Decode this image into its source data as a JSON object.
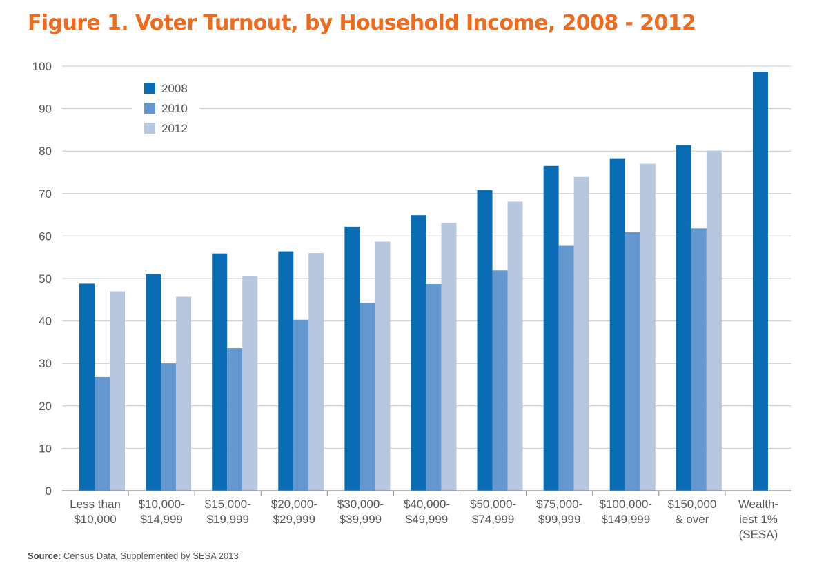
{
  "title": "Figure 1. Voter Turnout, by Household Income, 2008 - 2012",
  "source_label": "Source:",
  "source_text": "Census Data, Supplemented by SESA 2013",
  "colors": {
    "title": "#ee6a1d",
    "series": [
      "#0a6cb5",
      "#6497cd",
      "#b7c7e0"
    ],
    "grid": "#c8c8c8",
    "text": "#555555"
  },
  "chart_data": {
    "type": "bar",
    "title": "Figure 1. Voter Turnout, by Household Income, 2008 - 2012",
    "xlabel": "",
    "ylabel": "",
    "ylim": [
      0,
      100
    ],
    "yticks": [
      0,
      10,
      20,
      30,
      40,
      50,
      60,
      70,
      80,
      90,
      100
    ],
    "grid": true,
    "legend": "top-left",
    "categories": [
      [
        "Less than",
        "$10,000"
      ],
      [
        "$10,000-",
        "$14,999"
      ],
      [
        "$15,000-",
        "$19,999"
      ],
      [
        "$20,000-",
        "$29,999"
      ],
      [
        "$30,000-",
        "$39,999"
      ],
      [
        "$40,000-",
        "$49,999"
      ],
      [
        "$50,000-",
        "$74,999"
      ],
      [
        "$75,000-",
        "$99,999"
      ],
      [
        "$100,000-",
        "$149,999"
      ],
      [
        "$150,000",
        "& over"
      ],
      [
        "Wealth-",
        "iest 1%",
        "(SESA)"
      ]
    ],
    "series": [
      {
        "name": "2008",
        "values": [
          48.8,
          51.0,
          55.9,
          56.4,
          62.2,
          64.9,
          70.8,
          76.5,
          78.3,
          81.4,
          98.7
        ]
      },
      {
        "name": "2010",
        "values": [
          26.8,
          30.0,
          33.6,
          40.3,
          44.3,
          48.7,
          51.9,
          57.7,
          60.9,
          61.8,
          null
        ]
      },
      {
        "name": "2012",
        "values": [
          47.0,
          45.7,
          50.6,
          56.0,
          58.7,
          63.1,
          68.1,
          73.9,
          77.0,
          80.1,
          null
        ]
      }
    ]
  }
}
